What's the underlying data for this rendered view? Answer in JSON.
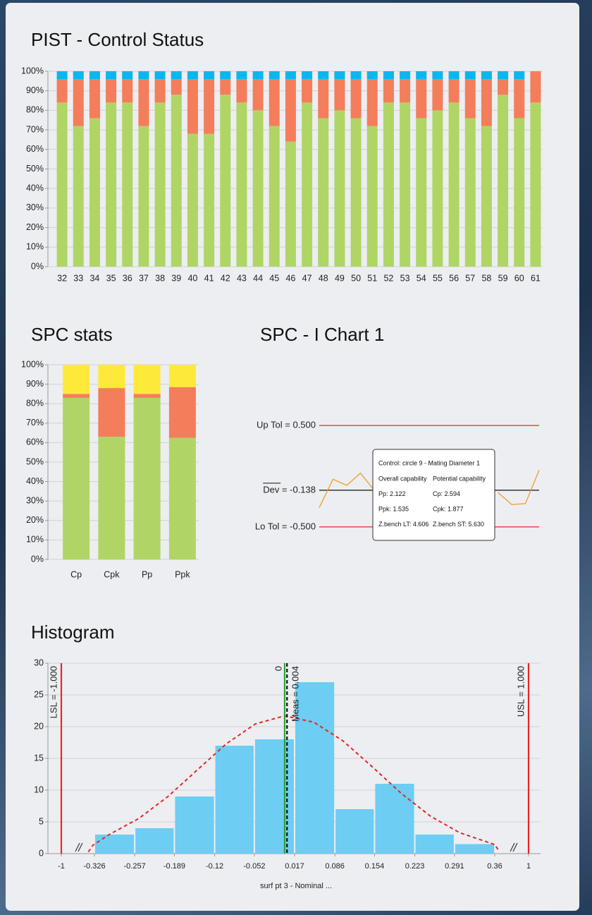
{
  "chart_data": [
    {
      "type": "stacked_bar",
      "title": "PIST - Control Status",
      "categories": [
        "32",
        "33",
        "34",
        "35",
        "36",
        "37",
        "38",
        "39",
        "40",
        "41",
        "42",
        "43",
        "44",
        "45",
        "46",
        "47",
        "48",
        "49",
        "50",
        "51",
        "52",
        "53",
        "54",
        "55",
        "56",
        "57",
        "58",
        "59",
        "60",
        "61"
      ],
      "series": [
        {
          "color": "#b0d565",
          "values": [
            84,
            72,
            76,
            84,
            84,
            72,
            84,
            88,
            68,
            68,
            88,
            84,
            80,
            72,
            64,
            84,
            76,
            80,
            76,
            72,
            84,
            84,
            76,
            80,
            84,
            76,
            72,
            88,
            76,
            84
          ]
        },
        {
          "color": "#f47d5c",
          "values": [
            12,
            24,
            20,
            12,
            12,
            24,
            12,
            8,
            28,
            28,
            8,
            12,
            16,
            24,
            32,
            12,
            20,
            16,
            20,
            24,
            12,
            12,
            20,
            16,
            12,
            20,
            24,
            8,
            20,
            16
          ]
        },
        {
          "color": "#00b9f0",
          "values": [
            4,
            4,
            4,
            4,
            4,
            4,
            4,
            4,
            4,
            4,
            4,
            4,
            4,
            4,
            4,
            4,
            4,
            4,
            4,
            4,
            4,
            4,
            4,
            4,
            4,
            4,
            4,
            4,
            4,
            0
          ]
        }
      ],
      "ylim": [
        0,
        100
      ],
      "yticks": [
        {
          "value": 0,
          "label": "0%"
        },
        {
          "value": 10,
          "label": "10%"
        },
        {
          "value": 20,
          "label": "20%"
        },
        {
          "value": 30,
          "label": "30%"
        },
        {
          "value": 40,
          "label": "40%"
        },
        {
          "value": 50,
          "label": "50%"
        },
        {
          "value": 60,
          "label": "60%"
        },
        {
          "value": 70,
          "label": "70%"
        },
        {
          "value": 80,
          "label": "80%"
        },
        {
          "value": 90,
          "label": "90%"
        },
        {
          "value": 100,
          "label": "100%"
        }
      ],
      "grid": true
    },
    {
      "type": "stacked_bar",
      "title": "SPC stats",
      "categories": [
        "Cp",
        "Cpk",
        "Pp",
        "Ppk"
      ],
      "series": [
        {
          "color": "#b0d565",
          "values": [
            83,
            63,
            83,
            62.5
          ]
        },
        {
          "color": "#f47d5c",
          "values": [
            2,
            25,
            2,
            26
          ]
        },
        {
          "color": "#fde93a",
          "values": [
            15,
            12,
            15,
            11.5
          ]
        }
      ],
      "ylim": [
        0,
        100
      ],
      "yticks": [
        {
          "value": 0,
          "label": "0%"
        },
        {
          "value": 10,
          "label": "10%"
        },
        {
          "value": 20,
          "label": "20%"
        },
        {
          "value": 30,
          "label": "30%"
        },
        {
          "value": 40,
          "label": "40%"
        },
        {
          "value": 50,
          "label": "50%"
        },
        {
          "value": 60,
          "label": "60%"
        },
        {
          "value": 70,
          "label": "70%"
        },
        {
          "value": 80,
          "label": "80%"
        },
        {
          "value": 90,
          "label": "90%"
        },
        {
          "value": 100,
          "label": "100%"
        }
      ],
      "grid": true
    },
    {
      "type": "line",
      "title": "SPC - I Chart 1",
      "series": [
        {
          "color": "#f29a2e",
          "values": [
            -0.31,
            -0.03,
            -0.09,
            0.03,
            -0.14,
            null,
            null,
            null,
            null,
            null,
            null,
            null,
            null,
            -0.16,
            -0.28,
            -0.27,
            0.06
          ]
        }
      ],
      "ylim": [
        -0.8,
        0.8
      ],
      "reference_lines": [
        {
          "value": 0.5,
          "label": "Up Tol = 0.500",
          "color": "#e8262a"
        },
        {
          "value": -0.138,
          "label": "Dev = -0.138",
          "color": "#111111"
        },
        {
          "value": -0.5,
          "label": "Lo Tol = -0.500",
          "color": "#e8262a"
        }
      ],
      "tooltip": {
        "title": "Control: circle 9 - Mating Diameter 1",
        "rows": [
          [
            "Overall capability",
            "Potential capability"
          ],
          [
            "Pp: 2.122",
            "Cp: 2.594"
          ],
          [
            "Ppk: 1.535",
            "Cpk: 1.877"
          ],
          [
            "Z.bench LT: 4.606",
            "Z.bench ST: 5.630"
          ]
        ]
      }
    },
    {
      "type": "histogram",
      "title": "Histogram",
      "bins": [
        -0.326,
        -0.257,
        -0.189,
        -0.12,
        -0.052,
        0.017,
        0.086,
        0.154,
        0.223,
        0.291,
        0.36
      ],
      "values": [
        3,
        4,
        9,
        17,
        18,
        27,
        7,
        11,
        3,
        1.5
      ],
      "color": "#6dcdf2",
      "xlim": [
        -1,
        1
      ],
      "xticks": [
        -1,
        -0.326,
        -0.257,
        -0.189,
        -0.12,
        -0.052,
        0.017,
        0.086,
        0.154,
        0.223,
        0.291,
        0.36,
        1
      ],
      "ylim": [
        0,
        30
      ],
      "yticks": [
        0,
        5,
        10,
        15,
        20,
        25,
        30
      ],
      "grid": true,
      "x_label": "surf pt 3 - Nominal ...",
      "curve": {
        "color": "#e02a2a",
        "x": [
          -0.45,
          -0.36,
          -0.3,
          -0.25,
          -0.2,
          -0.15,
          -0.1,
          -0.05,
          0,
          0.05,
          0.1,
          0.15,
          0.2,
          0.25,
          0.3,
          0.36,
          0.45
        ],
        "values": [
          0.27,
          1.3,
          3.05,
          5.53,
          9.0,
          13.16,
          17.3,
          20.44,
          21.7,
          20.7,
          17.75,
          13.68,
          9.47,
          5.89,
          3.29,
          1.43,
          0.31
        ]
      },
      "reference_lines": [
        {
          "value": -1,
          "label": "LSL = -1.000",
          "color": "#e8262a"
        },
        {
          "value": 0,
          "label": "0",
          "color": "#2aa53a"
        },
        {
          "value": 0.004,
          "label": "Meas = 0.004",
          "color": "#111111",
          "dashed": true
        },
        {
          "value": 1,
          "label": "USL = 1.000",
          "color": "#e8262a"
        }
      ]
    }
  ]
}
